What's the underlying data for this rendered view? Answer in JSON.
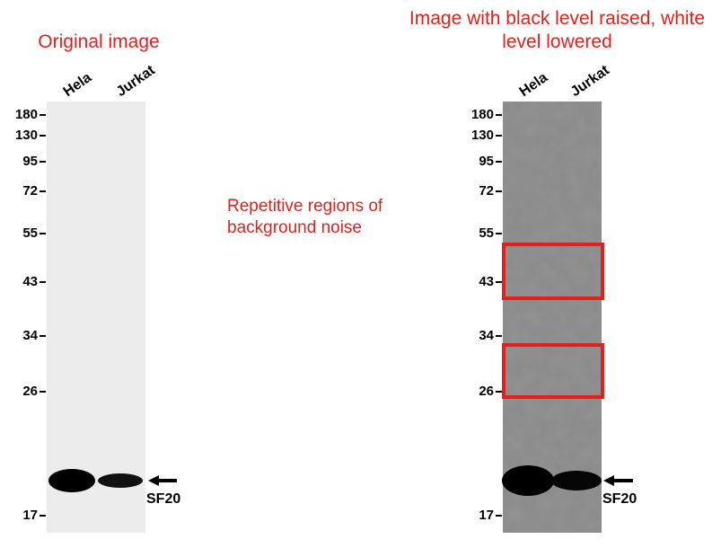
{
  "left_panel": {
    "title": "Original image",
    "lanes": [
      "Hela",
      "Jurkat"
    ],
    "markers": [
      180,
      130,
      95,
      72,
      55,
      43,
      34,
      26,
      17
    ],
    "band_label": "SF20"
  },
  "annotation": "Repetitive regions of background noise",
  "right_panel": {
    "title": "Image with black level raised, white level lowered",
    "lanes": [
      "Hela",
      "Jurkat"
    ],
    "markers": [
      180,
      130,
      95,
      72,
      55,
      43,
      34,
      26,
      17
    ],
    "band_label": "SF20"
  }
}
